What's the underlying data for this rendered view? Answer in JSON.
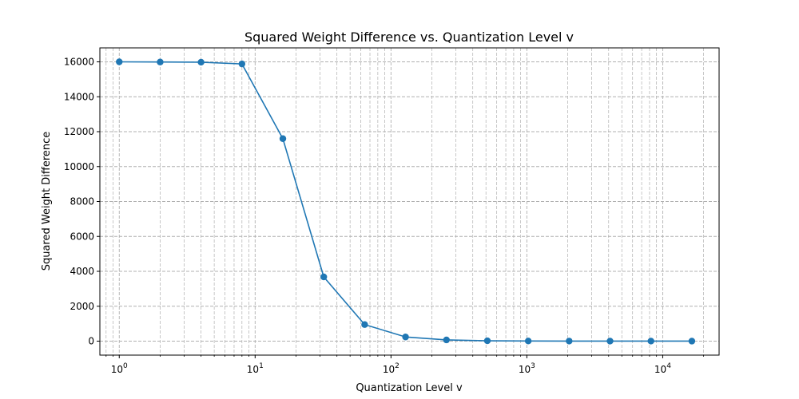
{
  "chart_data": {
    "type": "line",
    "title": "Squared Weight Difference vs. Quantization Level v",
    "xlabel": "Quantization Level v",
    "ylabel": "Squared Weight Difference",
    "xscale": "log",
    "xlim": [
      0.72,
      26000
    ],
    "ylim": [
      -800,
      16800
    ],
    "xticks": [
      {
        "base": "10",
        "exp": "0",
        "value": 1
      },
      {
        "base": "10",
        "exp": "1",
        "value": 10
      },
      {
        "base": "10",
        "exp": "2",
        "value": 100
      },
      {
        "base": "10",
        "exp": "3",
        "value": 1000
      },
      {
        "base": "10",
        "exp": "4",
        "value": 10000
      }
    ],
    "yticks": [
      "0",
      "2000",
      "4000",
      "6000",
      "8000",
      "10000",
      "12000",
      "14000",
      "16000"
    ],
    "grid": true,
    "grid_style": "dashed",
    "marker": "circle",
    "colors": {
      "line": "#1f77b4",
      "grid": "#b0b0b0",
      "axis": "#000000"
    },
    "series": [
      {
        "x": [
          1,
          2,
          4,
          8,
          16,
          32,
          64,
          128,
          256,
          512,
          1024,
          2048,
          4096,
          8192,
          16384
        ],
        "values": [
          16000,
          15990,
          15980,
          15880,
          11600,
          3680,
          950,
          240,
          70,
          20,
          8,
          5,
          3,
          2,
          1
        ]
      }
    ]
  }
}
